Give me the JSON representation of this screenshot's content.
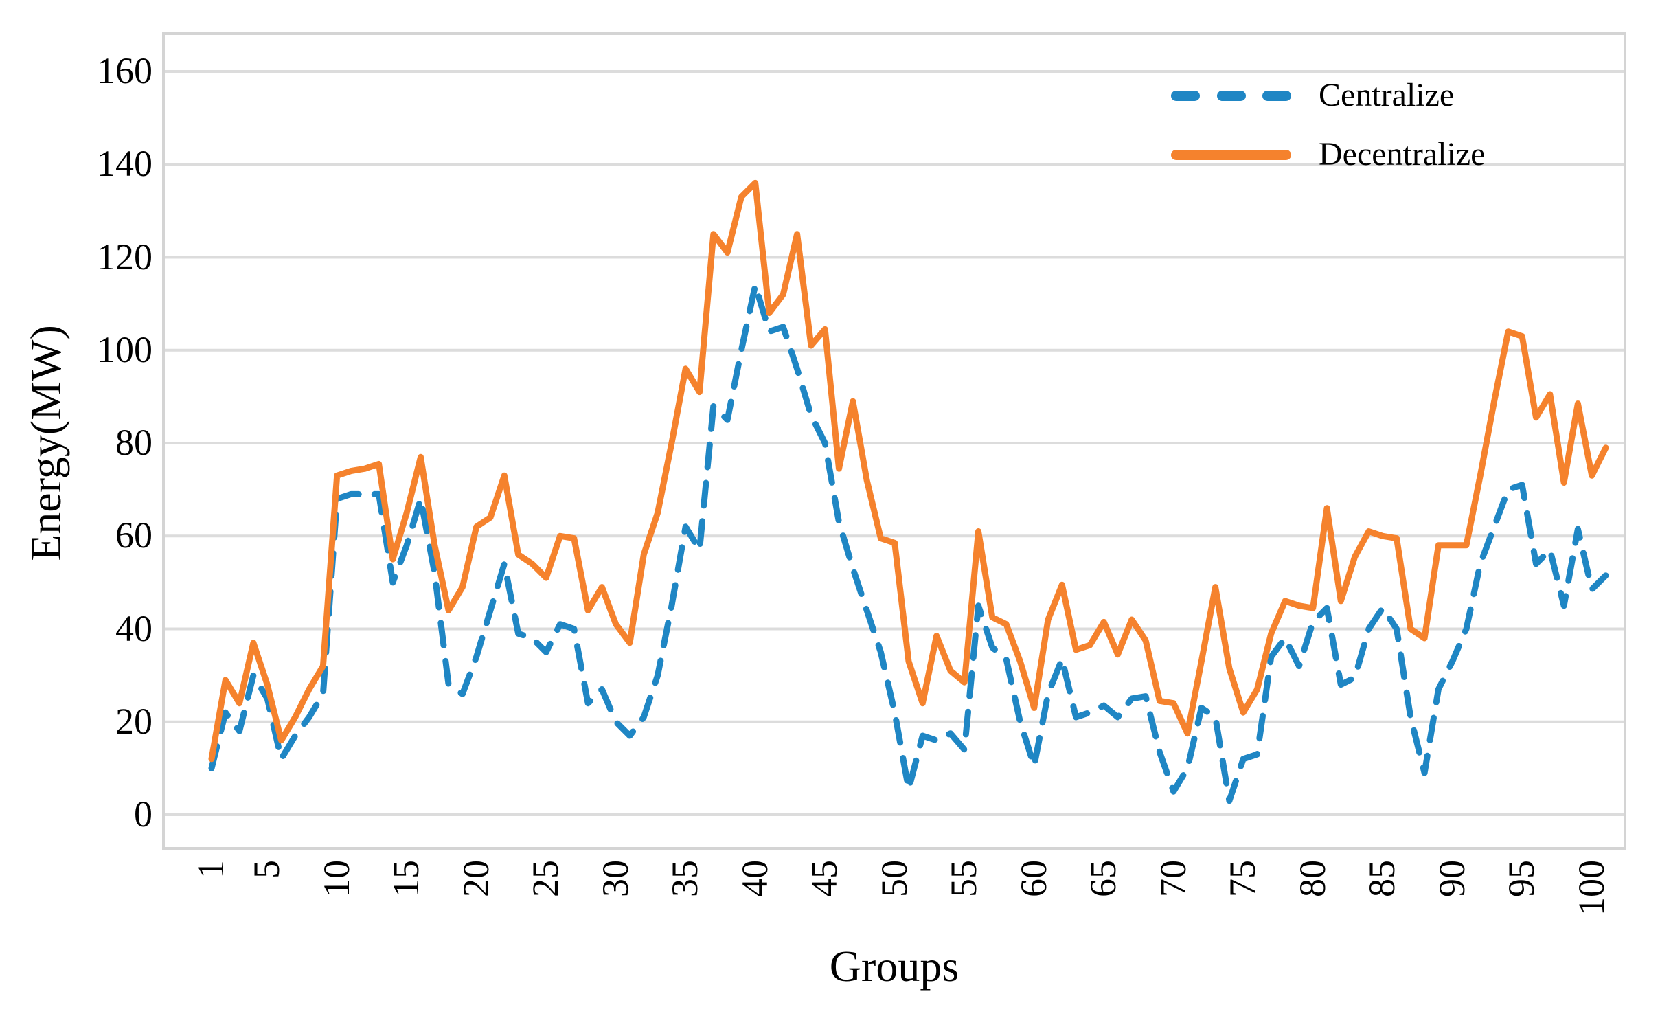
{
  "figure": {
    "background": "#ffffff",
    "plot_border_color": "#d4d4d4",
    "gridline_color": "#dcdcdc"
  },
  "axes": {
    "y_title": "Energy(MW)",
    "x_title": "Groups"
  },
  "legend": {
    "entries": [
      {
        "label": "Centralize",
        "color": "#1f86c4",
        "style": "dashed"
      },
      {
        "label": "Decentralize",
        "color": "#f5822d",
        "style": "solid"
      }
    ]
  },
  "chart_data": {
    "type": "line",
    "title": "",
    "xlabel": "Groups",
    "ylabel": "Energy(MW)",
    "ylim": [
      0,
      160
    ],
    "y_ticks": [
      0,
      20,
      40,
      60,
      80,
      100,
      120,
      140,
      160
    ],
    "x_ticks": [
      1,
      5,
      10,
      15,
      20,
      25,
      30,
      35,
      40,
      45,
      50,
      55,
      60,
      65,
      70,
      75,
      80,
      85,
      90,
      95,
      100
    ],
    "x_start": 1,
    "x_count": 101,
    "grid": "horizontal",
    "legend_position": "top-right-inside",
    "series": [
      {
        "name": "Centralize",
        "color": "#1f86c4",
        "dashed": true,
        "values": [
          10,
          22,
          18,
          30,
          25,
          12,
          17,
          21,
          26,
          68,
          69,
          69,
          69,
          50,
          58,
          68,
          52,
          28,
          26,
          34,
          44,
          54,
          39,
          38,
          35,
          41,
          40,
          24,
          27,
          20,
          17,
          21,
          30,
          45,
          62,
          57,
          88,
          85,
          100,
          114,
          104,
          105,
          96,
          86,
          80,
          63,
          53,
          44,
          35,
          22,
          5.5,
          17,
          16,
          17.5,
          14,
          45,
          36,
          33.5,
          20,
          10.5,
          26,
          33.5,
          21,
          22,
          23.5,
          21,
          25,
          25.5,
          13.5,
          5,
          10,
          23,
          21,
          3,
          12,
          13,
          34,
          38,
          32,
          41.5,
          44.5,
          28,
          29.5,
          40,
          44.5,
          40,
          21,
          9,
          27,
          33,
          40,
          54,
          62,
          70,
          71,
          54,
          57,
          45,
          61.5,
          48.5,
          51.5
        ]
      },
      {
        "name": "Decentralize",
        "color": "#f5822d",
        "dashed": false,
        "values": [
          12,
          29,
          24,
          37,
          28,
          16,
          21,
          27,
          32,
          73,
          74,
          74.5,
          75.5,
          55,
          65,
          77,
          58,
          44,
          49,
          62,
          64,
          73,
          56,
          54,
          51,
          60,
          59.5,
          44,
          49,
          41,
          37,
          56,
          65,
          80,
          96,
          91,
          125,
          121,
          133,
          136,
          108,
          112,
          125,
          101,
          104.5,
          74.5,
          89,
          72,
          59.5,
          58.5,
          33,
          24,
          38.5,
          31,
          28.5,
          61,
          42.5,
          41,
          33,
          23,
          42,
          49.5,
          35.5,
          36.5,
          41.5,
          34.5,
          42,
          37.5,
          24.5,
          24,
          17.5,
          33,
          49,
          31.5,
          22,
          27,
          39,
          46,
          45,
          44.5,
          66,
          46,
          55.5,
          61,
          60,
          59.5,
          40,
          38,
          58,
          58,
          58,
          73,
          89,
          104,
          103,
          85.5,
          90.5,
          71.5,
          88.5,
          73,
          79
        ]
      }
    ]
  }
}
